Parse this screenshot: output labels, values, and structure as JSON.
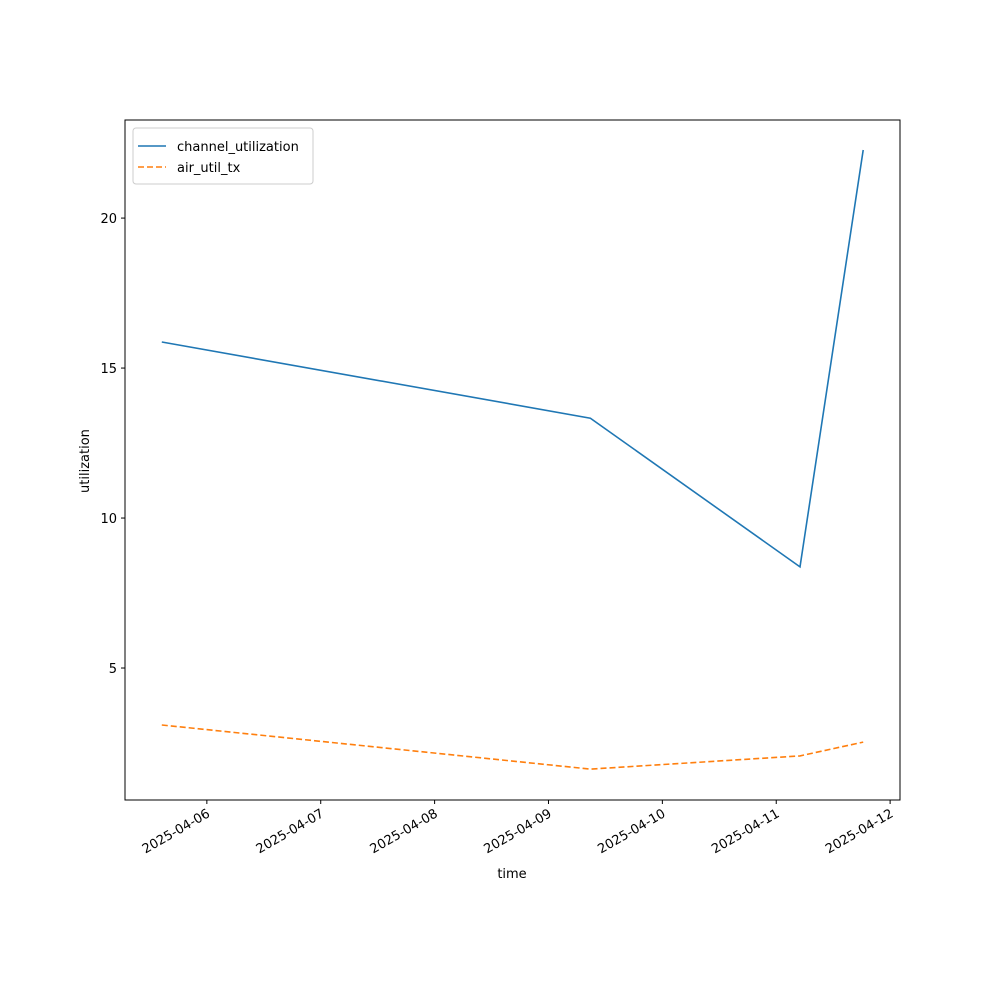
{
  "chart_data": {
    "type": "line",
    "xlabel": "time",
    "ylabel": "utilization",
    "series": [
      {
        "name": "channel_utilization",
        "color": "#1f77b4",
        "linestyle": "solid",
        "x": [
          "2025-04-05T14:30",
          "2025-04-09T08:50",
          "2025-04-11T05:00",
          "2025-04-11T18:20"
        ],
        "values": [
          15.87,
          13.33,
          8.37,
          22.27
        ]
      },
      {
        "name": "air_util_tx",
        "color": "#ff7f0e",
        "linestyle": "dashed",
        "x": [
          "2025-04-05T14:30",
          "2025-04-09T08:50",
          "2025-04-11T05:00",
          "2025-04-11T18:20"
        ],
        "values": [
          3.1,
          1.63,
          2.07,
          2.53
        ]
      }
    ],
    "xlim": [
      "2025-04-05T06:45",
      "2025-04-12T02:05"
    ],
    "xticks": [
      "2025-04-06",
      "2025-04-07",
      "2025-04-08",
      "2025-04-09",
      "2025-04-10",
      "2025-04-11",
      "2025-04-12"
    ],
    "ylim": [
      0.6,
      23.27
    ],
    "yticks": [
      5,
      10,
      15,
      20
    ],
    "grid": false,
    "legend": "upper left"
  }
}
